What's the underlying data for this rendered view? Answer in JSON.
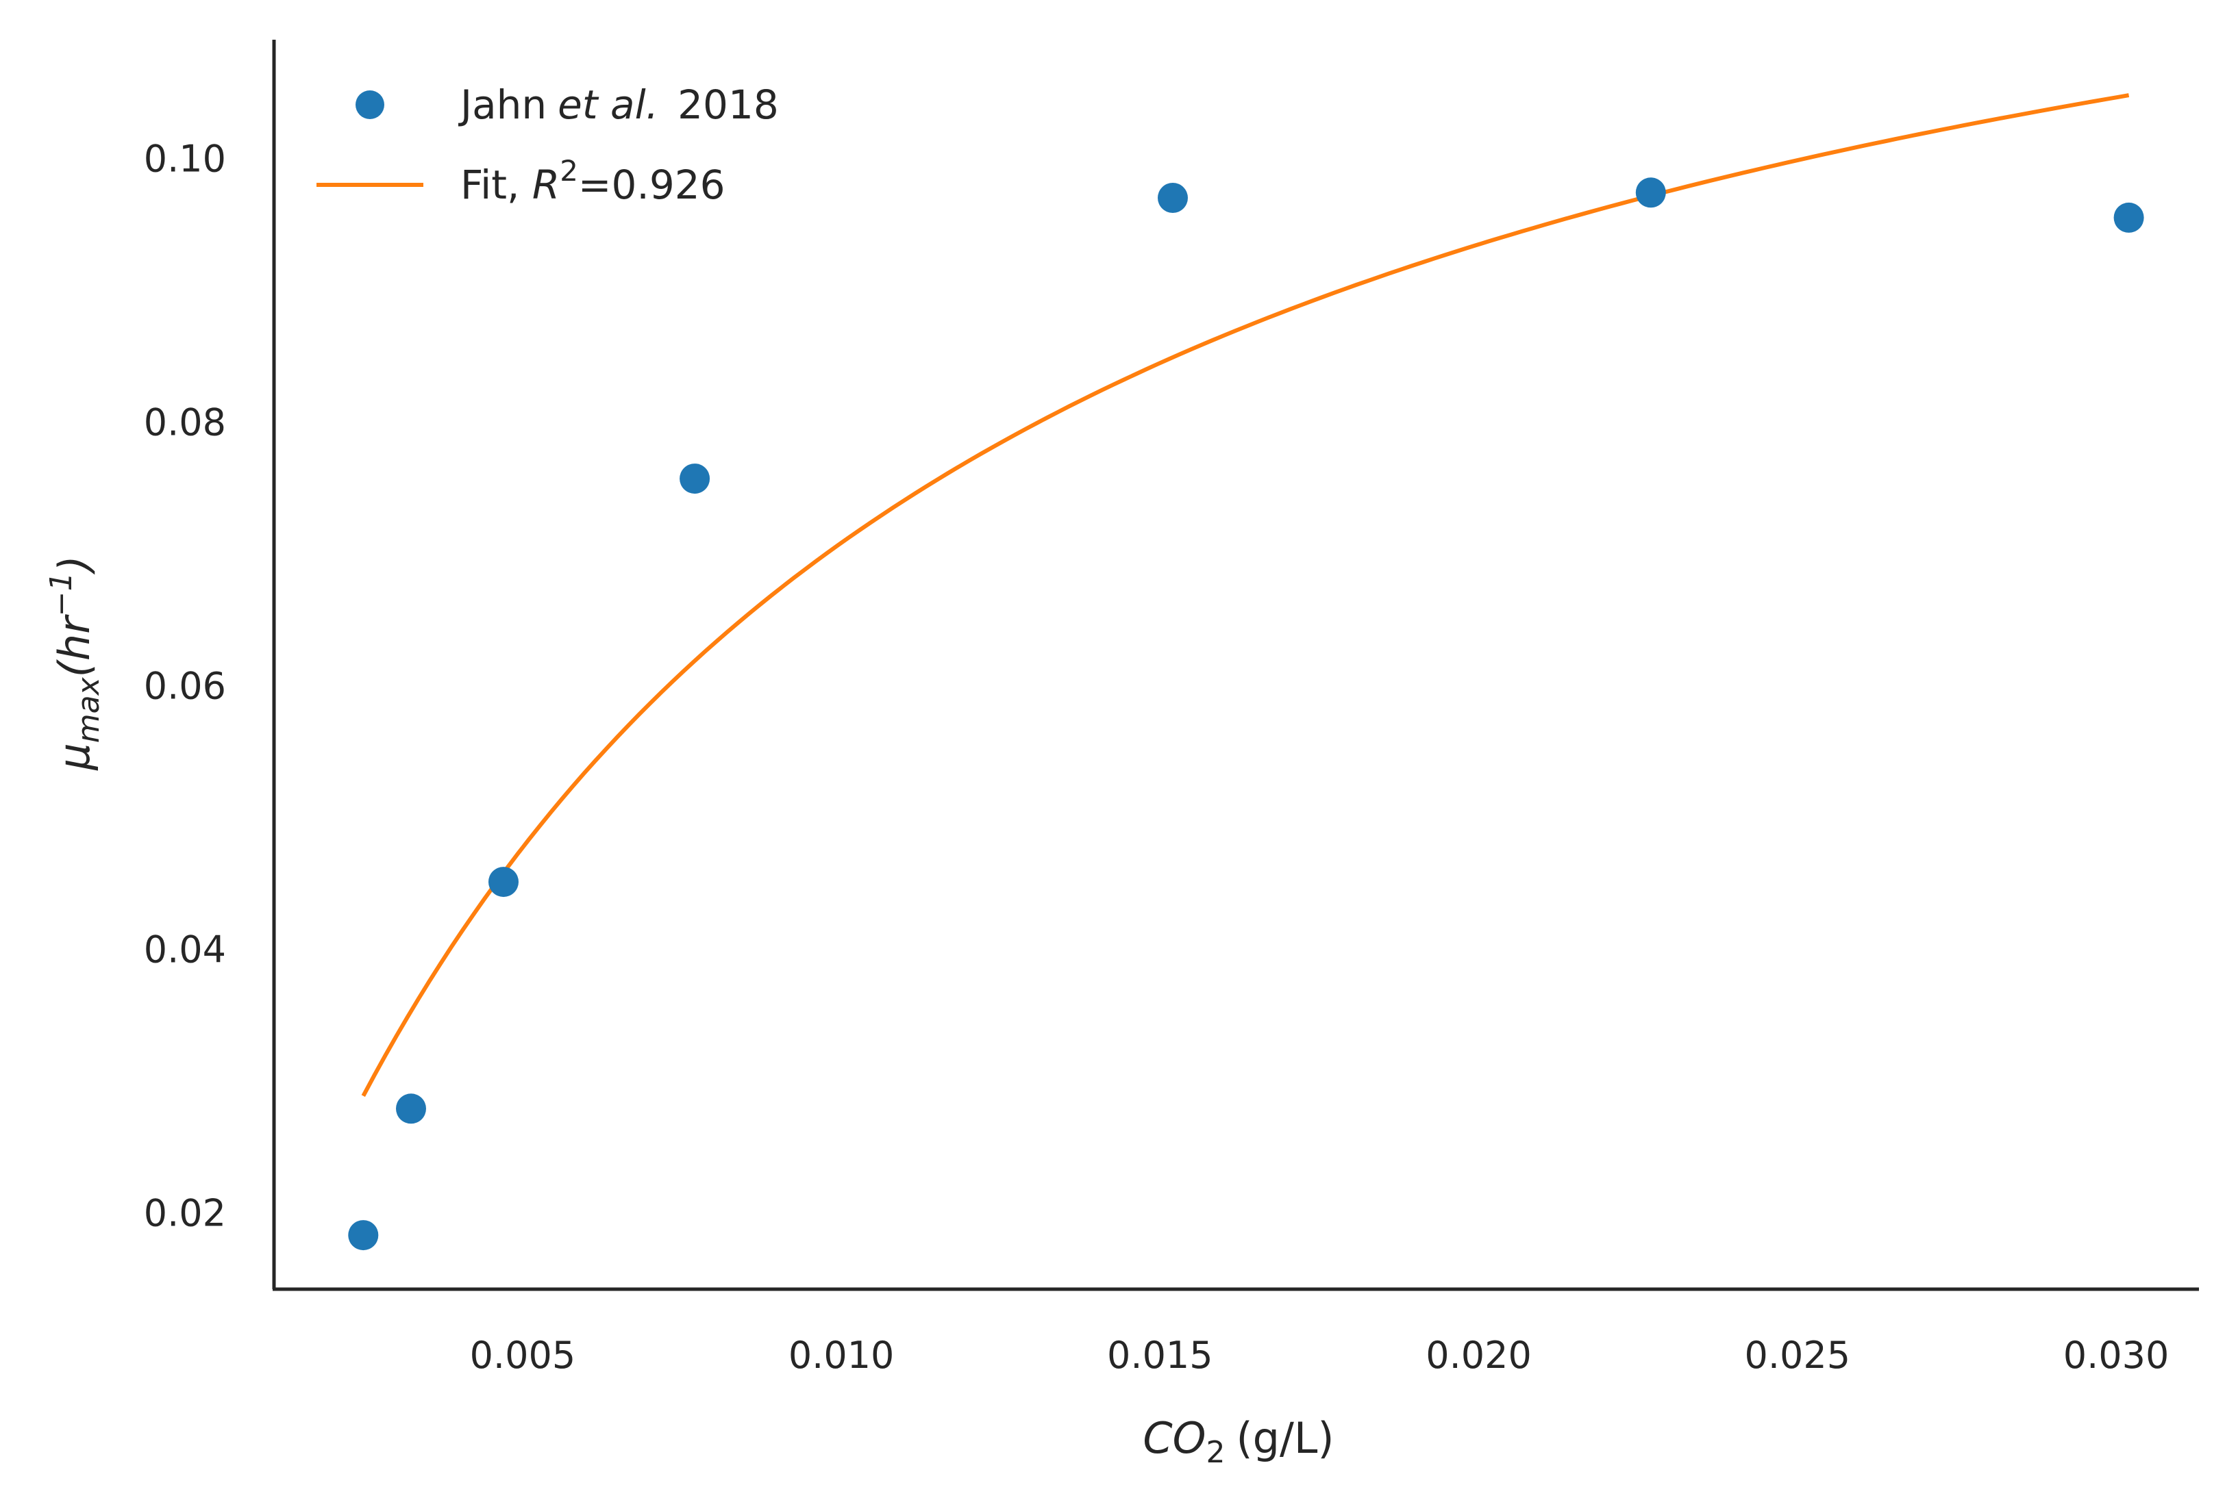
{
  "chart_data": {
    "type": "scatter",
    "xlabel": {
      "symbol_main": "CO",
      "symbol_sub": "2",
      "unit": "(g/L)"
    },
    "ylabel": {
      "symbol_main": "μ",
      "symbol_sub": "max",
      "unit_open": "(hr",
      "unit_sup": "−1",
      "unit_close": ")"
    },
    "xlim": [
      0.0011,
      0.0313
    ],
    "ylim": [
      0.0142,
      0.109
    ],
    "xticks": [
      0.005,
      0.01,
      0.015,
      0.02,
      0.025,
      0.03
    ],
    "xtick_labels": [
      "0.005",
      "0.010",
      "0.015",
      "0.020",
      "0.025",
      "0.030"
    ],
    "yticks": [
      0.02,
      0.04,
      0.06,
      0.08,
      0.1
    ],
    "ytick_labels": [
      "0.02",
      "0.04",
      "0.06",
      "0.08",
      "0.10"
    ],
    "grid": false,
    "legend_position": "top-left",
    "colors": {
      "points": "#1f77b4",
      "fit": "#ff7f0e",
      "axes": "#262626"
    },
    "series": [
      {
        "name": {
          "author": "Jahn",
          "etal": "et al.",
          "year": "2018"
        },
        "kind": "points",
        "x": [
          0.0025,
          0.00325,
          0.0047,
          0.0077,
          0.0152,
          0.0227,
          0.0302
        ],
        "y": [
          0.0183,
          0.0279,
          0.0451,
          0.0757,
          0.097,
          0.0974,
          0.0955
        ]
      },
      {
        "name": {
          "prefix": "Fit, ",
          "symbol": "R",
          "sup": "2",
          "value": "=0.926"
        },
        "kind": "line",
        "model": "monod",
        "params": {
          "mu_max": 0.1374,
          "Ks": 0.0094
        },
        "x_range": [
          0.0025,
          0.0302
        ]
      }
    ]
  }
}
